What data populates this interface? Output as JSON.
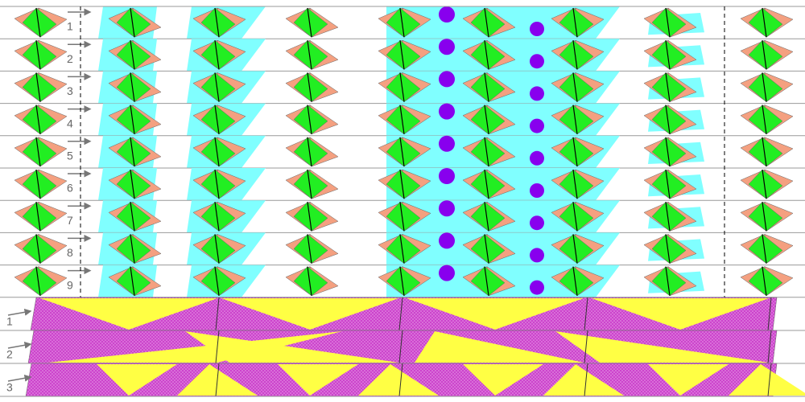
{
  "upper_rows": {
    "labels": [
      "1",
      "2",
      "3",
      "4",
      "5",
      "6",
      "7",
      "8",
      "9"
    ]
  },
  "lower_rows": {
    "labels": [
      "1",
      "2",
      "3"
    ]
  }
}
